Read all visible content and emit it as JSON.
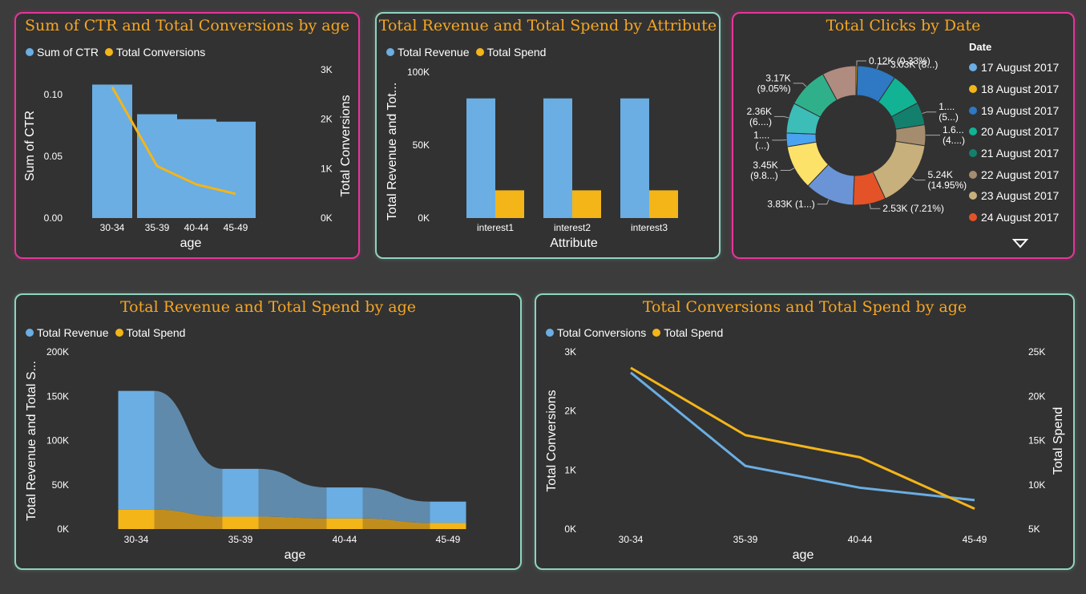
{
  "colors": {
    "revenue": "#6aaee3",
    "spend": "#f4b519",
    "title": "#f5a623",
    "pink": "#e8349a",
    "mint": "#8fd4c0"
  },
  "panels": {
    "ctr": {
      "title": "Sum of CTR and Total Conversions by age",
      "legend": [
        "Sum of CTR",
        "Total Conversions"
      ]
    },
    "attr": {
      "title": "Total Revenue and Total Spend by Attribute",
      "legend": [
        "Total Revenue",
        "Total Spend"
      ]
    },
    "clicks": {
      "title": "Total Clicks by Date",
      "legend_title": "Date"
    },
    "revage": {
      "title": "Total Revenue and Total Spend by age",
      "legend": [
        "Total Revenue",
        "Total Spend"
      ]
    },
    "convage": {
      "title": "Total Conversions and Total Spend by age",
      "legend": [
        "Total Conversions",
        "Total Spend"
      ]
    }
  },
  "chart_data": [
    {
      "type": "bar",
      "title": "Sum of CTR and Total Conversions by age",
      "categories": [
        "30-34",
        "35-39",
        "40-44",
        "45-49"
      ],
      "xlabel": "age",
      "ylabel": "Sum of CTR",
      "y2label": "Total Conversions",
      "ylim": [
        0,
        0.12
      ],
      "y2lim": [
        0,
        3000
      ],
      "yticks": [
        "0.00",
        "0.05",
        "0.10"
      ],
      "y2ticks": [
        "0K",
        "1K",
        "2K",
        "3K"
      ],
      "series": [
        {
          "name": "Sum of CTR",
          "type": "bar",
          "values": [
            0.108,
            0.084,
            0.08,
            0.078
          ]
        },
        {
          "name": "Total Conversions",
          "type": "line",
          "axis": "secondary",
          "values": [
            2650,
            1050,
            680,
            490
          ]
        }
      ],
      "legend": "top-left"
    },
    {
      "type": "bar",
      "title": "Total Revenue and Total Spend by Attribute",
      "categories": [
        "interest1",
        "interest2",
        "interest3"
      ],
      "xlabel": "Attribute",
      "ylabel": "Total Revenue and Tot...",
      "ylim": [
        0,
        100000
      ],
      "yticks": [
        "0K",
        "50K",
        "100K"
      ],
      "series": [
        {
          "name": "Total Revenue",
          "values": [
            82000,
            82000,
            82000
          ]
        },
        {
          "name": "Total Spend",
          "values": [
            19000,
            19000,
            19000
          ]
        }
      ],
      "legend": "top-left"
    },
    {
      "type": "pie",
      "title": "Total Clicks by Date",
      "legend_title": "Date",
      "legend_entries": [
        "17 August 2017",
        "18 August 2017",
        "19 August 2017",
        "20 August 2017",
        "21 August 2017",
        "22 August 2017",
        "23 August 2017",
        "24 August 2017"
      ],
      "slices": [
        {
          "value": 0.33,
          "color": "#f4b519",
          "label": "0.12K (0.33%)"
        },
        {
          "value": 8.6,
          "color": "#2e78c4",
          "label": "3.03K (8...)"
        },
        {
          "value": 7.5,
          "color": "#12b394",
          "label": ""
        },
        {
          "value": 5.0,
          "color": "#13806d",
          "label": "1....\n(5...)"
        },
        {
          "value": 4.6,
          "color": "#a58c6e",
          "label": "1.6...\n(4....)"
        },
        {
          "value": 14.95,
          "color": "#c8b07c",
          "label": "5.24K\n(14.95%)"
        },
        {
          "value": 7.21,
          "color": "#e35327",
          "label": "2.53K (7.21%)"
        },
        {
          "value": 10.9,
          "color": "#6b94d6",
          "label": "3.83K (1...)"
        },
        {
          "value": 9.8,
          "color": "#fde26a",
          "label": "3.45K\n(9.8...)"
        },
        {
          "value": 3.0,
          "color": "#4aa3f0",
          "label": "1....\n(...)"
        },
        {
          "value": 6.7,
          "color": "#3cbdb8",
          "label": "2.36K\n(6....)"
        },
        {
          "value": 9.05,
          "color": "#2fb08a",
          "label": "3.17K\n(9.05%)"
        },
        {
          "value": 7.5,
          "color": "#b08b80",
          "label": ""
        }
      ],
      "legend": "right"
    },
    {
      "type": "area",
      "title": "Total Revenue and Total Spend by age",
      "categories": [
        "30-34",
        "35-39",
        "40-44",
        "45-49"
      ],
      "xlabel": "age",
      "ylabel": "Total Revenue and Total S...",
      "ylim": [
        0,
        200000
      ],
      "yticks": [
        "0K",
        "50K",
        "100K",
        "150K",
        "200K"
      ],
      "series": [
        {
          "name": "Total Revenue",
          "values": [
            156000,
            68000,
            47000,
            31000
          ]
        },
        {
          "name": "Total Spend",
          "values": [
            22000,
            14000,
            12000,
            7000
          ]
        }
      ],
      "legend": "top-left"
    },
    {
      "type": "line",
      "title": "Total Conversions and Total Spend by age",
      "categories": [
        "30-34",
        "35-39",
        "40-44",
        "45-49"
      ],
      "xlabel": "age",
      "ylabel": "Total Conversions",
      "y2label": "Total Spend",
      "ylim": [
        0,
        3000
      ],
      "y2lim": [
        5000,
        25000
      ],
      "yticks": [
        "0K",
        "1K",
        "2K",
        "3K"
      ],
      "y2ticks": [
        "5K",
        "10K",
        "15K",
        "20K",
        "25K"
      ],
      "series": [
        {
          "name": "Total Conversions",
          "values": [
            2650,
            1070,
            700,
            490
          ]
        },
        {
          "name": "Total Spend",
          "axis": "secondary",
          "values": [
            23200,
            15600,
            13100,
            7300
          ]
        }
      ],
      "legend": "top-left"
    }
  ]
}
